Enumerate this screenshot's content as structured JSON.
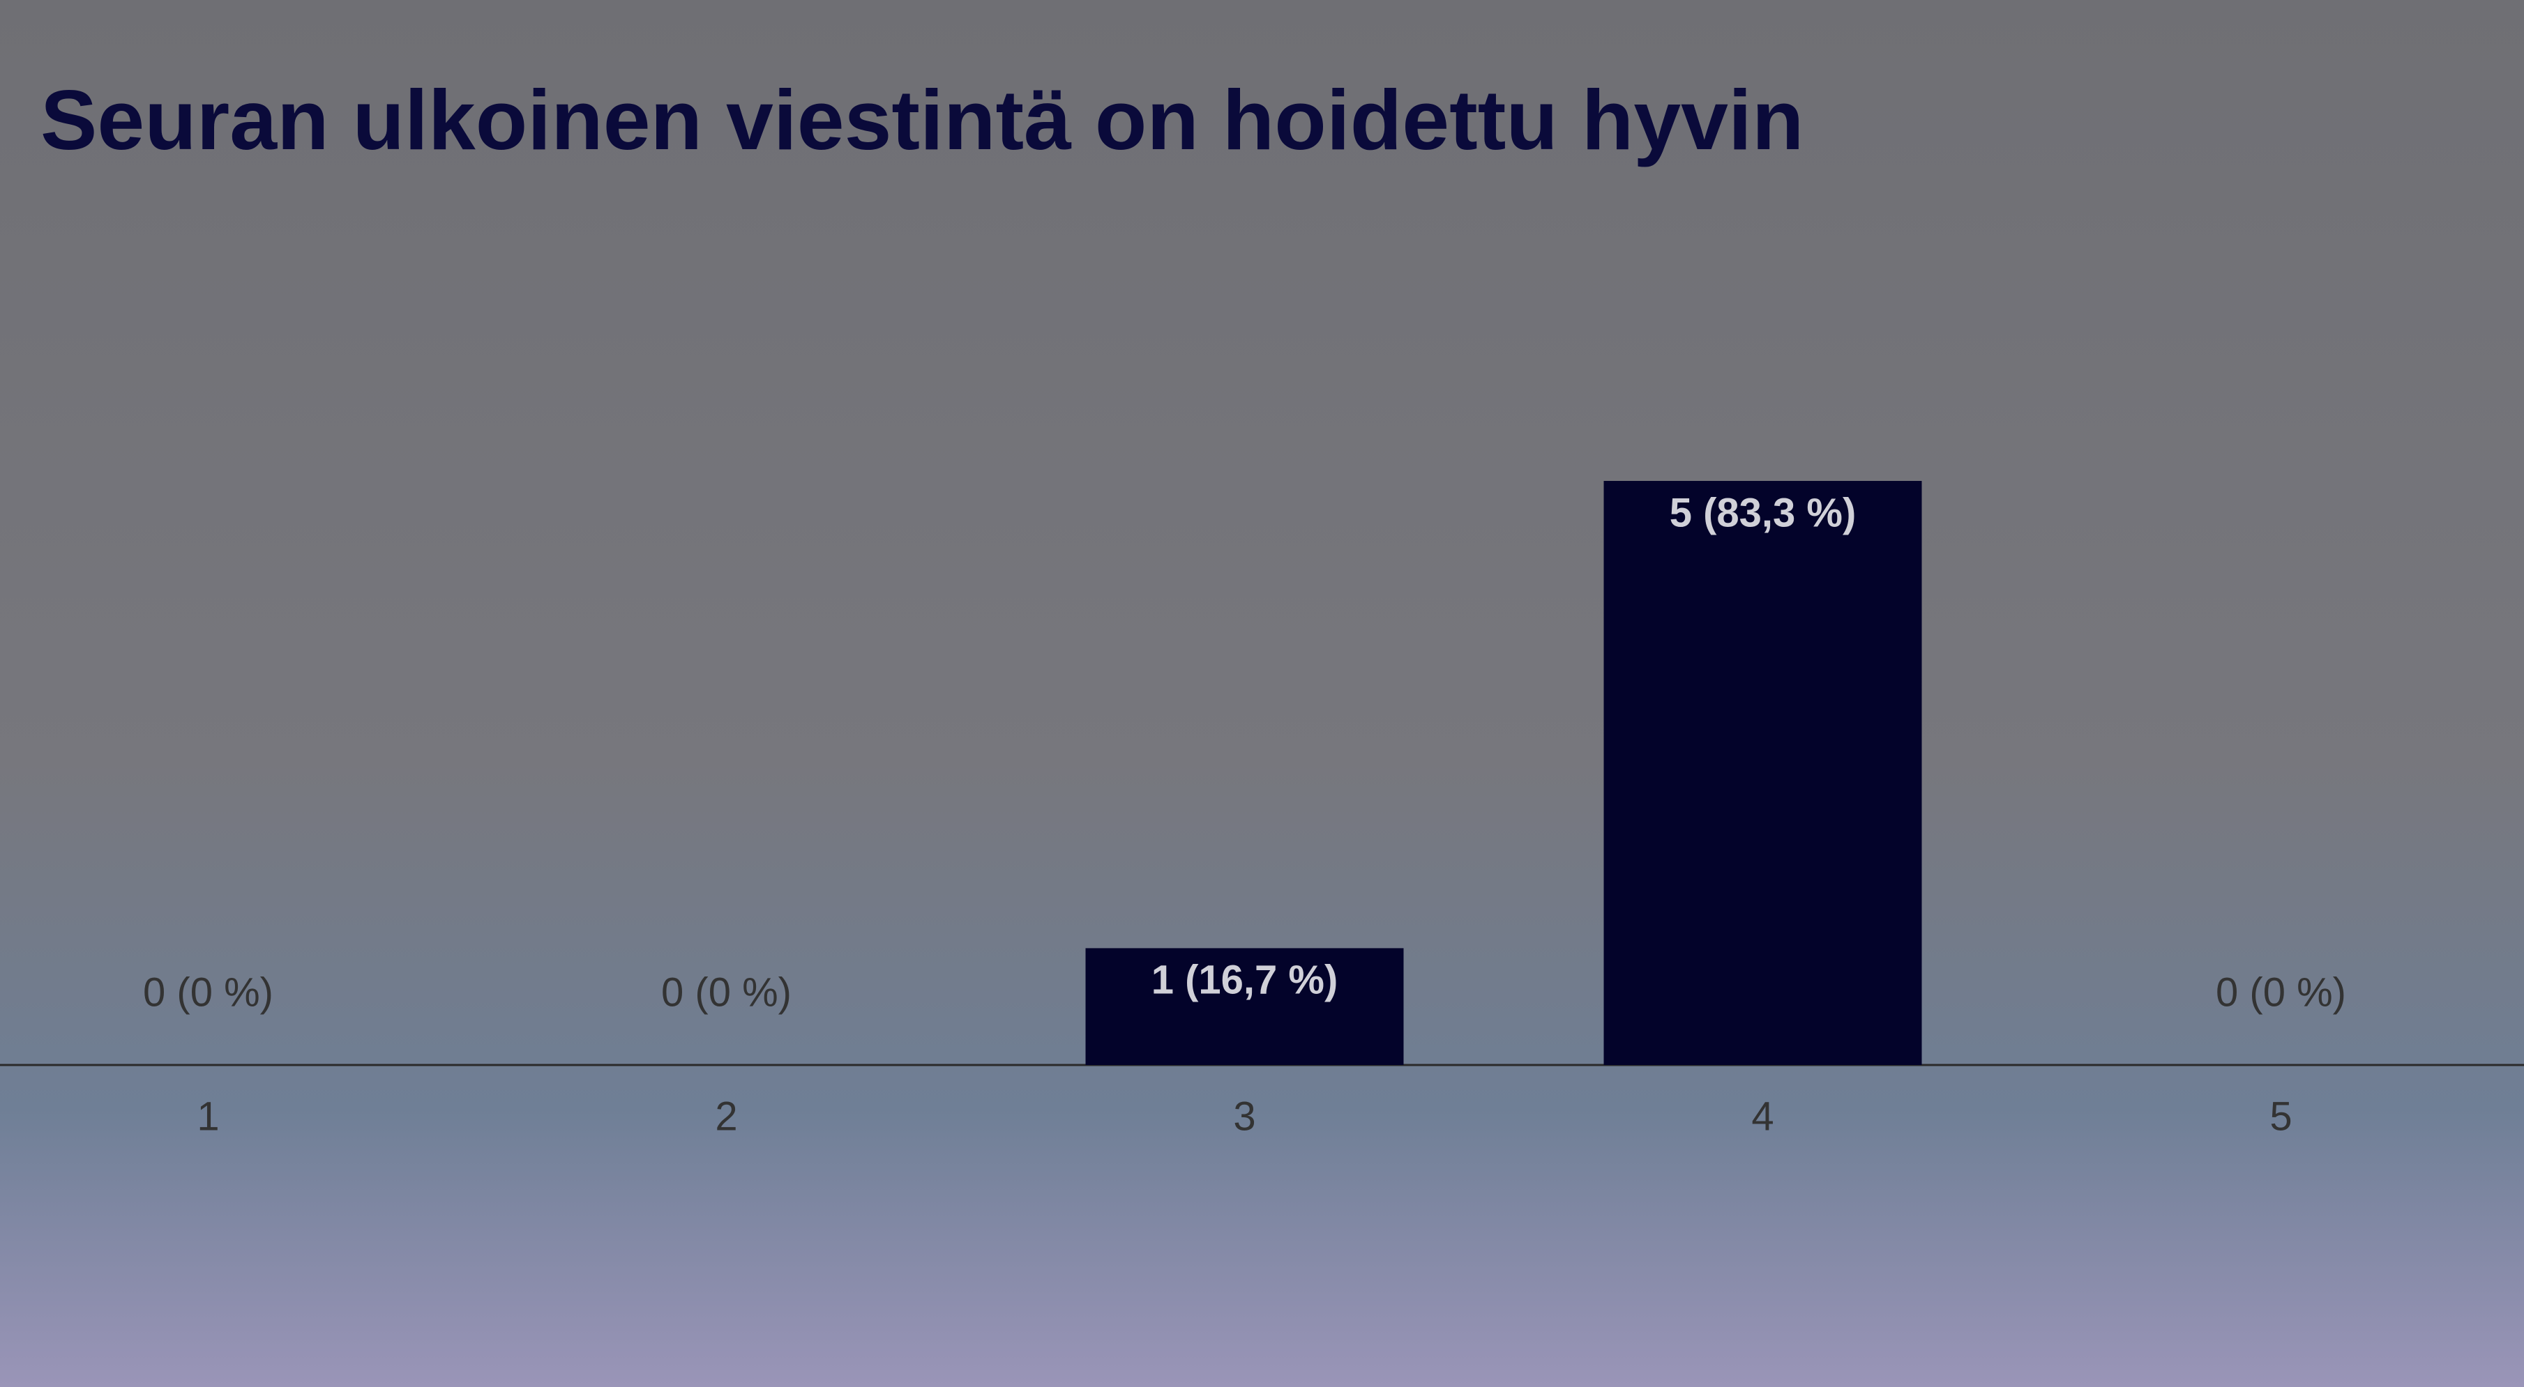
{
  "chart_data": {
    "type": "bar",
    "title": "Seuran ulkoinen viestintä on hoidettu hyvin",
    "categories": [
      "1",
      "2",
      "3",
      "4",
      "5"
    ],
    "values": [
      0,
      0,
      1,
      5,
      0
    ],
    "value_labels": [
      "0 (0 %)",
      "0 (0 %)",
      "1 (16,7 %)",
      "5 (83,3 %)",
      "0 (0 %)"
    ],
    "color": "#03032a",
    "ylim": [
      0,
      5
    ]
  }
}
